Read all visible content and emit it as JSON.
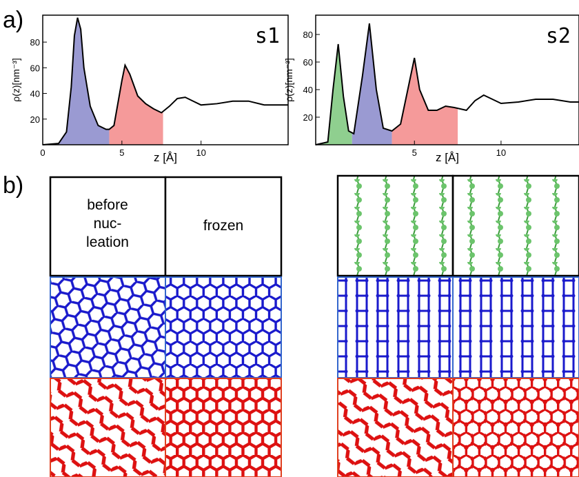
{
  "panel_labels": [
    "a)",
    "b)"
  ],
  "chart_data": [
    {
      "type": "line",
      "title": "s1",
      "x_label": "z [Å]",
      "y_label": "ρ(z)[nm⁻³]",
      "x": [
        0,
        1,
        1.5,
        1.8,
        2,
        2.2,
        2.4,
        2.6,
        3,
        3.5,
        4,
        4.2,
        4.5,
        5,
        5.2,
        5.5,
        6,
        6.5,
        7,
        7.5,
        8,
        8.5,
        9,
        9.5,
        10,
        11,
        12,
        13,
        14,
        15.5
      ],
      "series": [
        {
          "color": "#000000",
          "values": [
            0,
            1,
            10,
            45,
            85,
            99,
            90,
            60,
            30,
            15,
            12,
            12,
            15,
            50,
            62,
            55,
            38,
            32,
            28,
            25,
            30,
            36,
            37,
            34,
            31,
            32,
            34,
            34,
            31,
            31
          ]
        }
      ],
      "fills": [
        {
          "from": 0,
          "to": 4.2,
          "color": "#9a9ad2"
        },
        {
          "from": 4.2,
          "to": 7.6,
          "color": "#f59a9a"
        }
      ],
      "xlim": [
        0,
        15.5
      ],
      "xticks": [
        0,
        5,
        10
      ],
      "ylim": [
        0,
        101
      ],
      "yticks": [
        20,
        40,
        60,
        80
      ]
    },
    {
      "type": "line",
      "title": "s2",
      "x_label": "z [Å]",
      "y_label": "ρ(z)[nm⁻³]",
      "x": [
        -0.7,
        0,
        0.3,
        0.6,
        0.9,
        1.2,
        1.5,
        2,
        2.4,
        2.8,
        3.2,
        3.7,
        4.2,
        4.7,
        5,
        5.3,
        5.8,
        6.3,
        6.8,
        7.3,
        8,
        8.5,
        9,
        9.5,
        10,
        11,
        12,
        13,
        14,
        14.5
      ],
      "series": [
        {
          "color": "#000000",
          "values": [
            0,
            2,
            40,
            73,
            35,
            10,
            8,
            50,
            88,
            40,
            12,
            10,
            15,
            45,
            63,
            40,
            25,
            25,
            28,
            27,
            25,
            32,
            36,
            33,
            30,
            31,
            33,
            33,
            31,
            31
          ]
        }
      ],
      "fills": [
        {
          "from": -0.7,
          "to": 1.4,
          "color": "#8fcf8f"
        },
        {
          "from": 1.4,
          "to": 3.7,
          "color": "#9a9ad2"
        },
        {
          "from": 3.7,
          "to": 7.5,
          "color": "#f59a9a"
        }
      ],
      "xlim": [
        -0.7,
        14.5
      ],
      "xticks": [
        5,
        10
      ],
      "ylim": [
        0,
        94
      ],
      "yticks": [
        20,
        40,
        60,
        80
      ]
    }
  ],
  "panel_b": {
    "column_labels": [
      [
        "before",
        "nuc-",
        "leation"
      ],
      "frozen"
    ]
  }
}
